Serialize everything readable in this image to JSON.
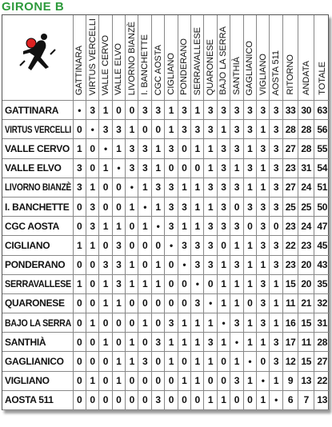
{
  "title": "GIRONE B",
  "table": {
    "columns": [
      "GATTINARA",
      "VIRTUS VERCELLI",
      "VALLE CERVO",
      "VALLE ELVO",
      "LIVORNO BIANZÈ",
      "I. BANCHETTE",
      "CGC AOSTA",
      "CIGLIANO",
      "PONDERANO",
      "SERRAVALLESE",
      "QUARONESE",
      "BAJO LA SERRA",
      "SANTHIÀ",
      "GAGLIANICO",
      "VIGLIANO",
      "AOSTA 511",
      "RITORNO",
      "ANDATA",
      "TOTALE"
    ],
    "rows": [
      [
        "GATTINARA",
        "•",
        3,
        1,
        0,
        0,
        3,
        3,
        1,
        3,
        1,
        3,
        3,
        3,
        3,
        3,
        3,
        33,
        30,
        63
      ],
      [
        "VIRTUS VERCELLI",
        0,
        "•",
        3,
        3,
        1,
        0,
        0,
        1,
        3,
        3,
        3,
        1,
        3,
        3,
        1,
        3,
        28,
        28,
        56
      ],
      [
        "VALLE CERVO",
        1,
        0,
        "•",
        1,
        3,
        3,
        1,
        3,
        0,
        1,
        1,
        3,
        3,
        1,
        3,
        3,
        27,
        28,
        55
      ],
      [
        "VALLE ELVO",
        3,
        0,
        1,
        "•",
        3,
        3,
        1,
        0,
        0,
        0,
        1,
        3,
        1,
        3,
        1,
        3,
        23,
        31,
        54
      ],
      [
        "LIVORNO BIANZÈ",
        3,
        1,
        0,
        0,
        "•",
        1,
        3,
        3,
        1,
        1,
        3,
        3,
        3,
        1,
        1,
        3,
        27,
        24,
        51
      ],
      [
        "I. BANCHETTE",
        0,
        3,
        0,
        0,
        1,
        "•",
        1,
        3,
        3,
        1,
        1,
        3,
        0,
        3,
        3,
        3,
        25,
        25,
        50
      ],
      [
        "CGC AOSTA",
        0,
        3,
        1,
        1,
        0,
        1,
        "•",
        3,
        1,
        1,
        3,
        3,
        3,
        0,
        3,
        0,
        23,
        24,
        47
      ],
      [
        "CIGLIANO",
        1,
        1,
        0,
        3,
        0,
        0,
        0,
        "•",
        3,
        3,
        3,
        0,
        1,
        1,
        3,
        3,
        22,
        23,
        45
      ],
      [
        "PONDERANO",
        0,
        0,
        3,
        3,
        1,
        0,
        1,
        0,
        "•",
        3,
        3,
        1,
        3,
        1,
        1,
        3,
        23,
        20,
        43
      ],
      [
        "SERRAVALLESE",
        1,
        0,
        1,
        3,
        1,
        1,
        1,
        0,
        0,
        "•",
        0,
        1,
        1,
        1,
        3,
        1,
        15,
        20,
        35
      ],
      [
        "QUARONESE",
        0,
        0,
        1,
        1,
        0,
        0,
        0,
        0,
        0,
        3,
        "•",
        1,
        1,
        0,
        3,
        1,
        11,
        21,
        32
      ],
      [
        "BAJO LA SERRA",
        0,
        1,
        0,
        0,
        0,
        1,
        0,
        3,
        1,
        1,
        1,
        "•",
        3,
        1,
        3,
        1,
        16,
        15,
        31
      ],
      [
        "SANTHIÀ",
        0,
        0,
        1,
        0,
        1,
        0,
        3,
        1,
        1,
        1,
        3,
        1,
        "•",
        1,
        1,
        3,
        17,
        11,
        28
      ],
      [
        "GAGLIANICO",
        0,
        0,
        0,
        1,
        1,
        3,
        0,
        1,
        0,
        1,
        1,
        0,
        1,
        "•",
        0,
        3,
        12,
        15,
        27
      ],
      [
        "VIGLIANO",
        0,
        1,
        0,
        1,
        0,
        0,
        0,
        0,
        1,
        1,
        0,
        0,
        3,
        1,
        "•",
        1,
        9,
        13,
        22
      ],
      [
        "AOSTA 511",
        0,
        0,
        0,
        0,
        0,
        0,
        3,
        0,
        0,
        0,
        1,
        1,
        0,
        0,
        1,
        "•",
        6,
        7,
        13
      ]
    ]
  }
}
